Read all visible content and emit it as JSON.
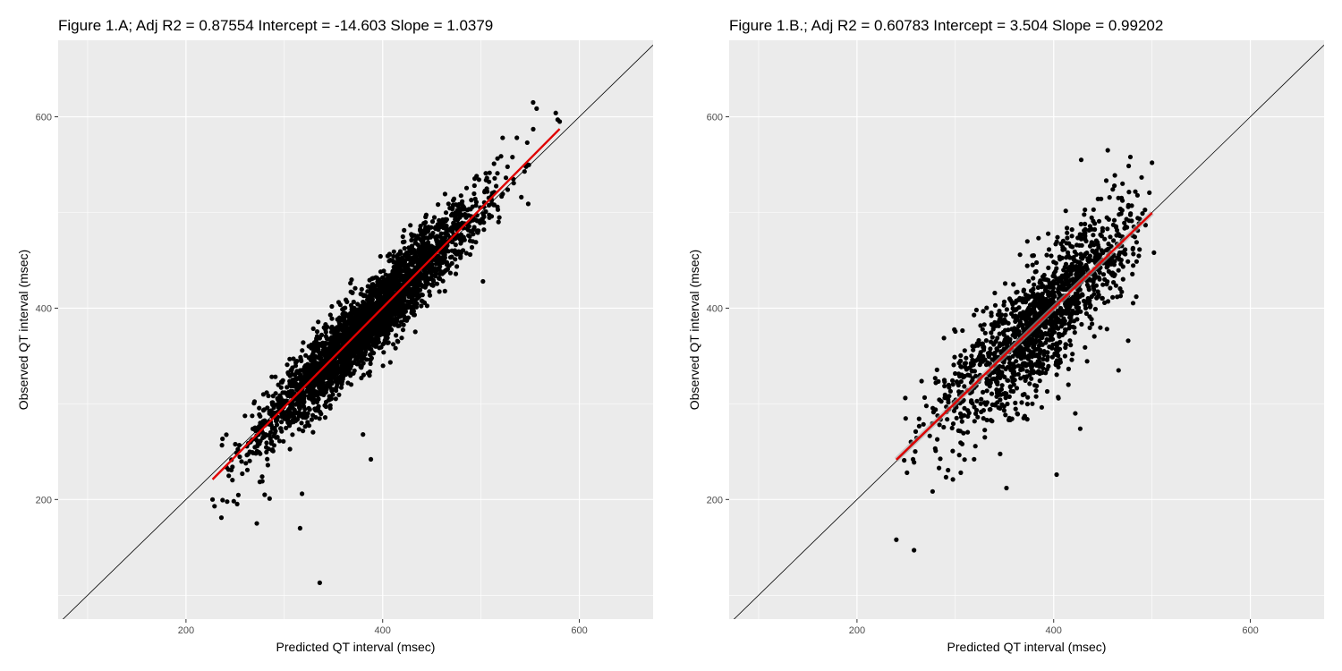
{
  "chart_data": [
    {
      "type": "scatter",
      "title": "Figure 1.A; Adj R2 =  0.87554 Intercept = -14.603  Slope = 1.0379",
      "xlabel": "Predicted QT interval (msec)",
      "ylabel": "Observed QT interval (msec)",
      "xlim": [
        70,
        675
      ],
      "ylim": [
        75,
        680
      ],
      "xticks": [
        200,
        400,
        600
      ],
      "yticks": [
        200,
        400,
        600
      ],
      "grid": true,
      "identity_line": true,
      "fit": {
        "intercept": -14.603,
        "slope": 1.0379,
        "x_range": [
          227,
          580
        ]
      },
      "cloud": {
        "n": 3200,
        "x_mean": 385,
        "x_sd": 55,
        "resid_sd": 19,
        "x_min": 225,
        "x_max": 580
      },
      "outliers": [
        [
          227,
          200
        ],
        [
          229,
          193
        ],
        [
          236,
          181
        ],
        [
          272,
          175
        ],
        [
          280,
          205
        ],
        [
          285,
          201
        ],
        [
          316,
          170
        ],
        [
          318,
          206
        ],
        [
          336,
          113
        ],
        [
          388,
          242
        ],
        [
          380,
          268
        ],
        [
          502,
          428
        ],
        [
          541,
          516
        ],
        [
          548,
          509
        ],
        [
          553,
          615
        ],
        [
          578,
          597
        ],
        [
          580,
          595
        ],
        [
          547,
          550
        ],
        [
          522,
          578
        ],
        [
          547,
          573
        ],
        [
          546,
          548
        ],
        [
          576,
          604
        ],
        [
          506,
          536
        ],
        [
          495,
          492
        ]
      ]
    },
    {
      "type": "scatter",
      "title": "Figure 1.B.; Adj R2 =  0.60783 Intercept = 3.504  Slope = 0.99202",
      "xlabel": "Predicted QT interval (msec)",
      "ylabel": "Observed QT interval (msec)",
      "xlim": [
        70,
        675
      ],
      "ylim": [
        75,
        680
      ],
      "xticks": [
        200,
        400,
        600
      ],
      "yticks": [
        200,
        400,
        600
      ],
      "grid": true,
      "identity_line": true,
      "fit": {
        "intercept": 3.504,
        "slope": 0.99202,
        "x_range": [
          240,
          500
        ]
      },
      "cloud": {
        "n": 1500,
        "x_mean": 385,
        "x_sd": 48,
        "resid_sd": 32,
        "x_min": 240,
        "x_max": 500
      },
      "outliers": [
        [
          240,
          158
        ],
        [
          258,
          147
        ],
        [
          352,
          212
        ],
        [
          403,
          226
        ],
        [
          422,
          290
        ],
        [
          427,
          274
        ],
        [
          415,
          320
        ],
        [
          466,
          335
        ],
        [
          455,
          565
        ],
        [
          428,
          555
        ],
        [
          478,
          558
        ],
        [
          500,
          552
        ],
        [
          502,
          458
        ],
        [
          484,
          412
        ],
        [
          257,
          242
        ],
        [
          248,
          241
        ],
        [
          280,
          251
        ],
        [
          307,
          258
        ],
        [
          330,
          265
        ]
      ]
    }
  ]
}
